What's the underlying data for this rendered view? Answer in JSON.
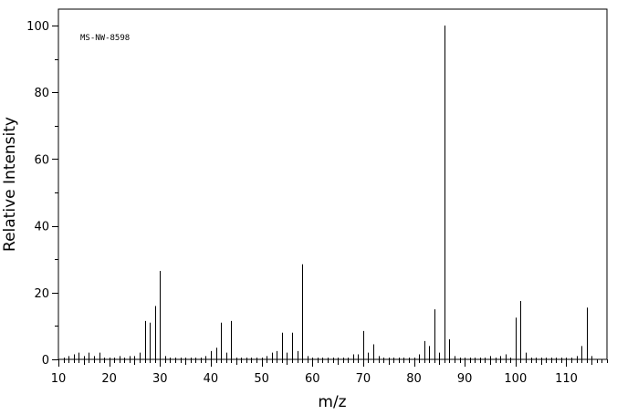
{
  "chart_data": {
    "type": "bar",
    "annotation": "MS-NW-8598",
    "xlabel": "m/z",
    "ylabel": "Relative Intensity",
    "xlim": [
      10,
      118
    ],
    "ylim": [
      0,
      105
    ],
    "xticks": [
      10,
      20,
      30,
      40,
      50,
      60,
      70,
      80,
      90,
      100,
      110
    ],
    "yticks": [
      0,
      20,
      40,
      60,
      80,
      100
    ],
    "grid": false,
    "peaks": {
      "mz": [
        11,
        12,
        13,
        14,
        15,
        16,
        17,
        18,
        19,
        20,
        21,
        22,
        23,
        24,
        25,
        26,
        27,
        28,
        29,
        30,
        31,
        32,
        33,
        34,
        35,
        36,
        37,
        38,
        39,
        40,
        41,
        42,
        43,
        44,
        45,
        46,
        47,
        48,
        49,
        50,
        51,
        52,
        53,
        54,
        55,
        56,
        57,
        58,
        59,
        60,
        61,
        62,
        63,
        64,
        65,
        66,
        67,
        68,
        69,
        70,
        71,
        72,
        73,
        74,
        75,
        76,
        77,
        78,
        79,
        80,
        81,
        82,
        83,
        84,
        85,
        86,
        87,
        88,
        89,
        90,
        91,
        92,
        93,
        94,
        95,
        96,
        97,
        98,
        99,
        100,
        101,
        102,
        103,
        104,
        105,
        106,
        107,
        108,
        109,
        110,
        111,
        112,
        113,
        114,
        115
      ],
      "intensity": [
        0.5,
        1,
        1.5,
        2,
        1,
        2,
        1,
        2,
        0.5,
        0.5,
        0.5,
        1,
        0.5,
        1,
        1,
        2,
        11.5,
        11,
        16,
        26.5,
        1,
        0.5,
        0.5,
        0.5,
        0.5,
        0.5,
        0.5,
        0.5,
        1,
        2.5,
        3.5,
        11,
        2,
        11.5,
        0.5,
        0.5,
        0.5,
        0.5,
        0.5,
        0.5,
        1,
        2,
        2.5,
        8,
        2,
        8,
        2.5,
        28.5,
        1,
        0.5,
        0.5,
        0.5,
        0.5,
        0.5,
        0.5,
        0.5,
        0.5,
        1.5,
        1.5,
        8.5,
        2,
        4.5,
        1,
        0.5,
        0.5,
        0.5,
        0.5,
        0.5,
        0.5,
        0.5,
        1.5,
        5.5,
        4,
        15,
        2,
        100,
        6,
        1,
        0.5,
        0.5,
        0.5,
        0.5,
        0.5,
        0.5,
        1,
        0.5,
        1,
        1.5,
        0.5,
        12.5,
        17.5,
        2,
        0.5,
        0.5,
        0.5,
        0.5,
        0.5,
        0.5,
        0.5,
        0.5,
        0.5,
        1,
        4,
        15.5,
        1
      ]
    }
  }
}
